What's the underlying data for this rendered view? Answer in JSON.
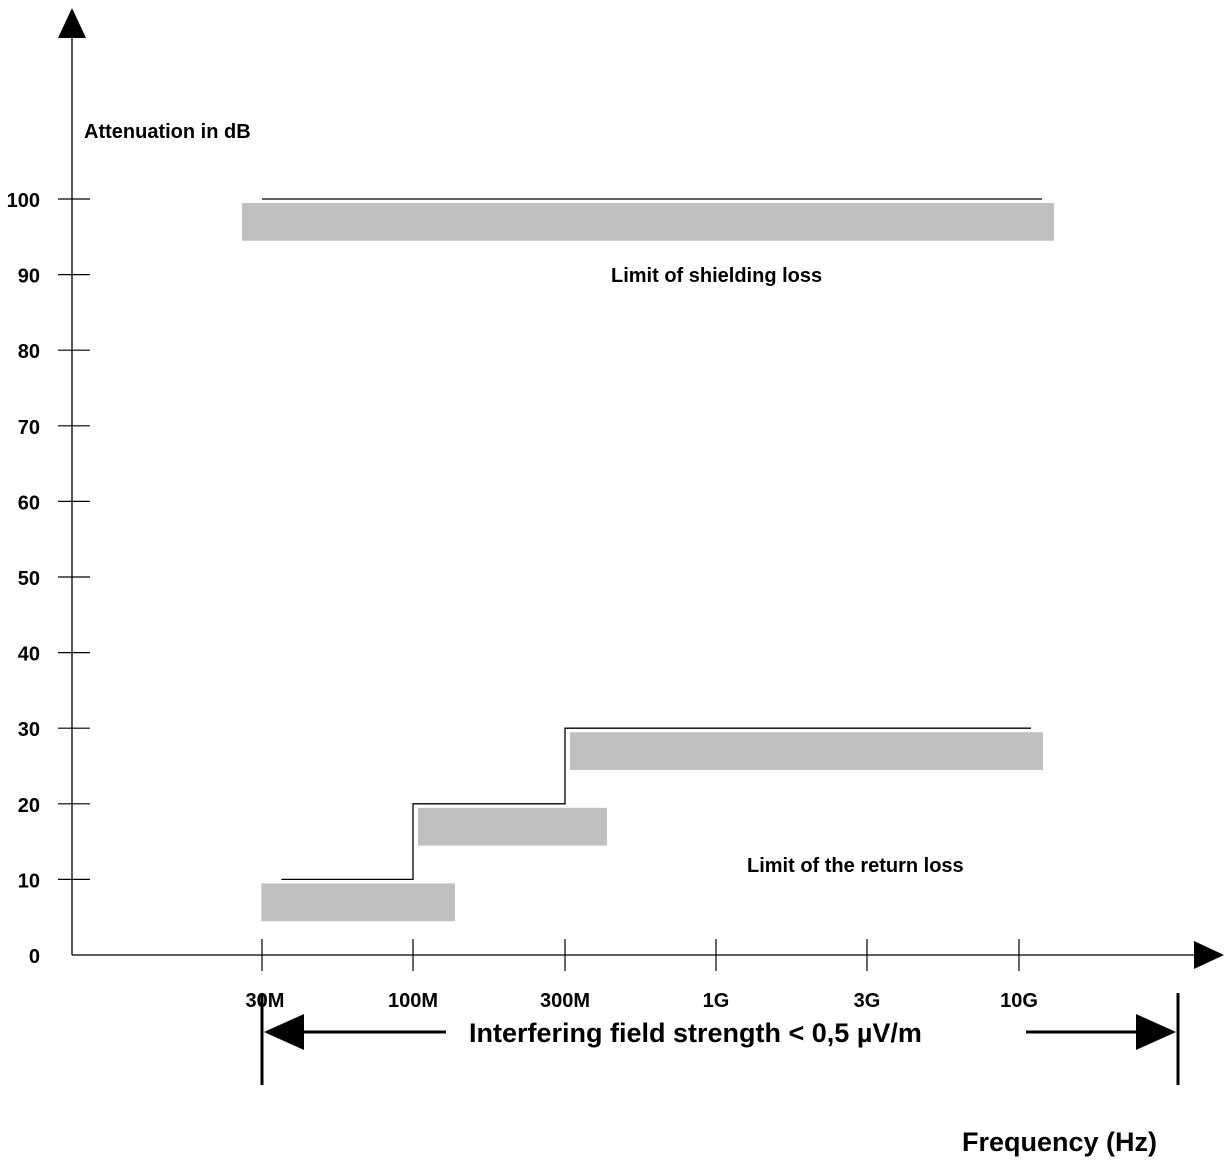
{
  "chart_data": {
    "type": "line",
    "title": "",
    "ylabel": "Attenuation in dB",
    "xlabel": "Frequency  (Hz)",
    "x_scale": "log",
    "x_ticks": [
      "30M",
      "100M",
      "300M",
      "1G",
      "3G",
      "10G"
    ],
    "y_ticks": [
      0,
      10,
      20,
      30,
      40,
      50,
      60,
      70,
      80,
      90,
      100
    ],
    "ylim": [
      0,
      100
    ],
    "grid": false,
    "series": [
      {
        "name": "Limit of shielding loss",
        "points": [
          [
            30,
            100
          ],
          [
            12000,
            100
          ]
        ]
      },
      {
        "name": "Limit of the return loss",
        "points": [
          [
            35,
            10
          ],
          [
            100,
            10
          ],
          [
            100,
            20
          ],
          [
            300,
            20
          ],
          [
            300,
            30
          ],
          [
            11000,
            30
          ]
        ]
      }
    ],
    "annotations": {
      "shielding_label": "Limit of shielding loss",
      "return_label": "Limit of the return loss",
      "range_label": "Interfering field strength <  0,5 µV/m"
    },
    "colors": {
      "line": "#000000",
      "band": "#c0c0c0"
    }
  }
}
